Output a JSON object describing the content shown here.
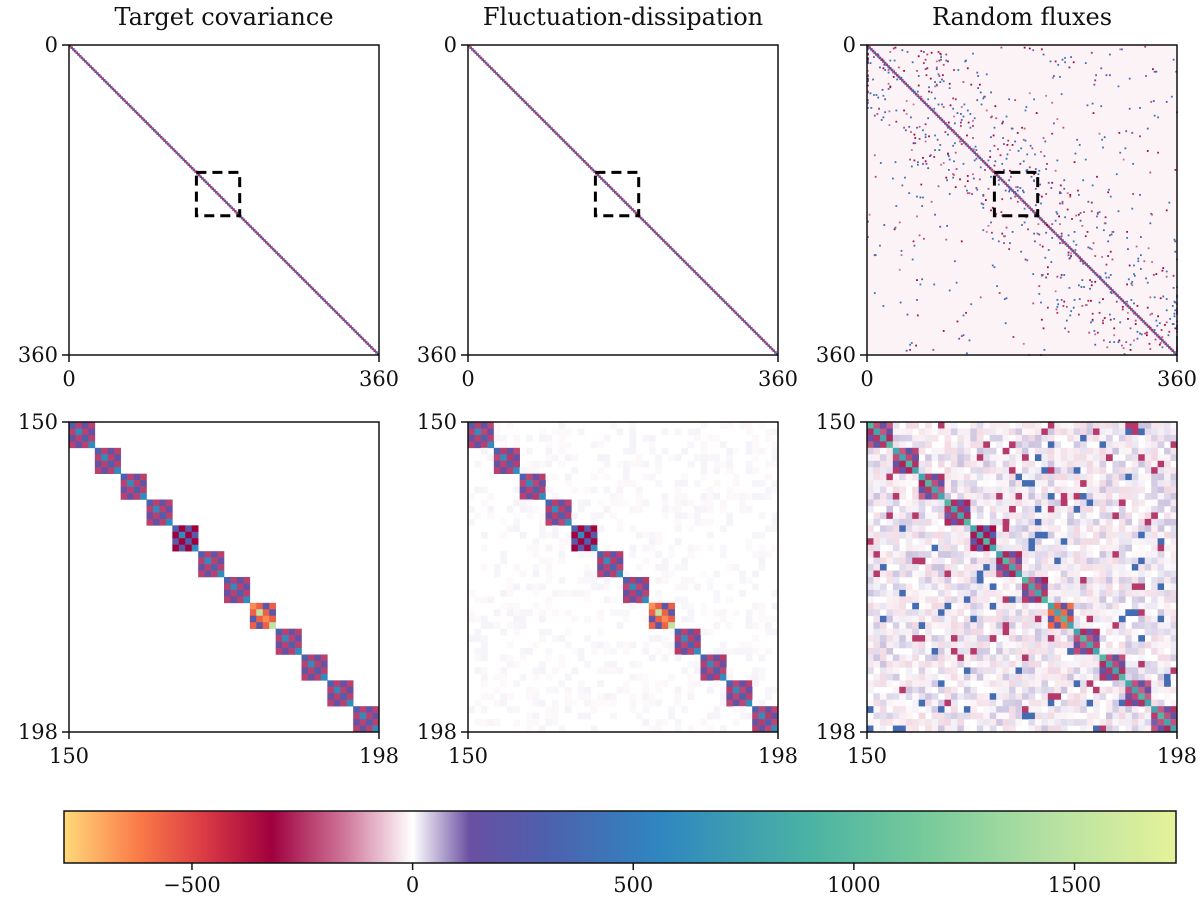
{
  "chart_data": [
    {
      "type": "heatmap",
      "title": "Target covariance",
      "view": "full",
      "x_ticks": [
        "0",
        "360"
      ],
      "y_ticks": [
        "0",
        "360"
      ],
      "xlim": [
        0,
        360
      ],
      "ylim": [
        0,
        360
      ],
      "zoom_box": [
        150,
        198
      ]
    },
    {
      "type": "heatmap",
      "title": "Fluctuation-dissipation",
      "view": "full",
      "x_ticks": [
        "0",
        "360"
      ],
      "y_ticks": [
        "0",
        "360"
      ],
      "xlim": [
        0,
        360
      ],
      "ylim": [
        0,
        360
      ],
      "zoom_box": [
        150,
        198
      ]
    },
    {
      "type": "heatmap",
      "title": "Random fluxes",
      "view": "full",
      "x_ticks": [
        "0",
        "360"
      ],
      "y_ticks": [
        "0",
        "360"
      ],
      "xlim": [
        0,
        360
      ],
      "ylim": [
        0,
        360
      ],
      "zoom_box": [
        150,
        198
      ]
    },
    {
      "type": "heatmap",
      "title": "",
      "view": "zoom",
      "x_ticks": [
        "150",
        "198"
      ],
      "y_ticks": [
        "150",
        "198"
      ],
      "xlim": [
        150,
        198
      ],
      "ylim": [
        150,
        198
      ]
    },
    {
      "type": "heatmap",
      "title": "",
      "view": "zoom",
      "x_ticks": [
        "150",
        "198"
      ],
      "y_ticks": [
        "150",
        "198"
      ],
      "xlim": [
        150,
        198
      ],
      "ylim": [
        150,
        198
      ]
    },
    {
      "type": "heatmap",
      "title": "",
      "view": "zoom",
      "x_ticks": [
        "150",
        "198"
      ],
      "y_ticks": [
        "150",
        "198"
      ],
      "xlim": [
        150,
        198
      ],
      "ylim": [
        150,
        198
      ]
    }
  ],
  "colorbar": {
    "vmin": -790,
    "vmax": 1730,
    "ticks": [
      -500,
      0,
      500,
      1000,
      1500
    ],
    "tick_labels": [
      "−500",
      "0",
      "500",
      "1000",
      "1500"
    ],
    "colormap": "Spectral (diverging, centered at 0)"
  },
  "colors": {
    "cmap_stops": [
      {
        "v": -790,
        "c": "#ffd97a"
      },
      {
        "v": -620,
        "c": "#fa7a48"
      },
      {
        "v": -470,
        "c": "#d93a45"
      },
      {
        "v": -320,
        "c": "#a0003e"
      },
      {
        "v": -150,
        "c": "#d07a9c"
      },
      {
        "v": 0,
        "c": "#ffffff"
      },
      {
        "v": 130,
        "c": "#6a4fa2"
      },
      {
        "v": 300,
        "c": "#4e60ad"
      },
      {
        "v": 560,
        "c": "#2f86c0"
      },
      {
        "v": 900,
        "c": "#4bb3a3"
      },
      {
        "v": 1150,
        "c": "#74c99b"
      },
      {
        "v": 1450,
        "c": "#b6e1a2"
      },
      {
        "v": 1730,
        "c": "#e5f29a"
      }
    ],
    "axis": "#111111",
    "zoom_box": "#000000"
  }
}
